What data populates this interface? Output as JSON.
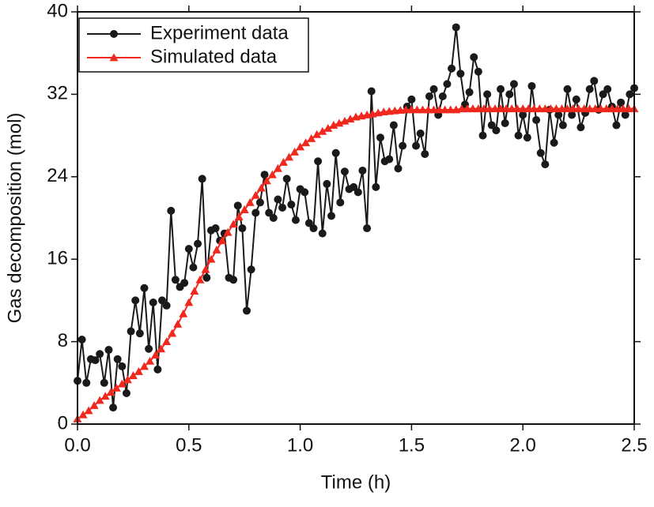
{
  "chart_data": {
    "type": "line",
    "xlabel": "Time (h)",
    "ylabel": "Gas decomposition (mol)",
    "xlim": [
      0,
      2.5
    ],
    "ylim": [
      0,
      40
    ],
    "xticks": [
      {
        "value": 0,
        "label": "0.0"
      },
      0.5,
      {
        "value": 1,
        "label": "1.0"
      },
      1.5,
      {
        "value": 2,
        "label": "2.0"
      },
      2.5
    ],
    "yticks": [
      0,
      8,
      16,
      24,
      32,
      40
    ],
    "legend": "upper left",
    "series": [
      {
        "name": "Experiment data",
        "color": "#1a1a1a",
        "marker": "circle",
        "x": [
          0,
          0.02,
          0.04,
          0.06,
          0.08,
          0.1,
          0.12,
          0.14,
          0.16,
          0.18,
          0.2,
          0.22,
          0.24,
          0.26,
          0.28,
          0.3,
          0.32,
          0.34,
          0.36,
          0.38,
          0.4,
          0.42,
          0.44,
          0.46,
          0.48,
          0.5,
          0.52,
          0.54,
          0.56,
          0.58,
          0.6,
          0.62,
          0.64,
          0.66,
          0.68,
          0.7,
          0.72,
          0.74,
          0.76,
          0.78,
          0.8,
          0.82,
          0.84,
          0.86,
          0.88,
          0.9,
          0.92,
          0.94,
          0.96,
          0.98,
          1,
          1.02,
          1.04,
          1.06,
          1.08,
          1.1,
          1.12,
          1.14,
          1.16,
          1.18,
          1.2,
          1.22,
          1.24,
          1.26,
          1.28,
          1.3,
          1.32,
          1.34,
          1.36,
          1.38,
          1.4,
          1.42,
          1.44,
          1.46,
          1.48,
          1.5,
          1.52,
          1.54,
          1.56,
          1.58,
          1.6,
          1.62,
          1.64,
          1.66,
          1.68,
          1.7,
          1.72,
          1.74,
          1.76,
          1.78,
          1.8,
          1.82,
          1.84,
          1.86,
          1.88,
          1.9,
          1.92,
          1.94,
          1.96,
          1.98,
          2,
          2.02,
          2.04,
          2.06,
          2.08,
          2.1,
          2.12,
          2.14,
          2.16,
          2.18,
          2.2,
          2.22,
          2.24,
          2.26,
          2.28,
          2.3,
          2.32,
          2.34,
          2.36,
          2.38,
          2.4,
          2.42,
          2.44,
          2.46,
          2.48,
          2.5
        ],
        "values": [
          4.2,
          8.2,
          4.0,
          6.3,
          6.2,
          6.8,
          4.0,
          7.2,
          1.6,
          6.3,
          5.6,
          3.0,
          9.0,
          12.0,
          8.8,
          13.2,
          7.3,
          11.8,
          5.3,
          12.0,
          11.5,
          20.7,
          14.0,
          13.3,
          13.7,
          17.0,
          15.2,
          17.5,
          23.8,
          14.2,
          18.8,
          19.0,
          17.8,
          18.5,
          14.2,
          14.0,
          21.2,
          19.0,
          11.0,
          15.0,
          20.5,
          21.5,
          24.2,
          20.5,
          20.0,
          21.8,
          21.0,
          23.8,
          21.3,
          19.8,
          22.8,
          22.5,
          19.5,
          19.0,
          25.5,
          18.5,
          23.3,
          20.2,
          26.3,
          21.5,
          24.5,
          22.8,
          23.0,
          22.5,
          24.6,
          19.0,
          32.3,
          23.0,
          27.8,
          25.5,
          25.7,
          29.0,
          24.8,
          27.0,
          30.8,
          31.5,
          27.0,
          28.2,
          26.2,
          31.8,
          32.5,
          30.0,
          31.8,
          33.0,
          34.5,
          38.5,
          34.0,
          31.0,
          32.2,
          35.6,
          34.2,
          28.0,
          32.0,
          29.0,
          28.5,
          32.5,
          29.2,
          32.0,
          33.0,
          28.0,
          30.0,
          27.8,
          32.8,
          29.5,
          26.3,
          25.2,
          30.5,
          27.3,
          30.0,
          29.0,
          32.5,
          30.0,
          31.5,
          28.8,
          30.2,
          32.5,
          33.3,
          30.5,
          32.0,
          32.5,
          30.8,
          29.0,
          31.2,
          30.0,
          32.0,
          32.6
        ]
      },
      {
        "name": "Simulated data",
        "color": "#f0281e",
        "marker": "triangle",
        "x": [
          0,
          0.025,
          0.05,
          0.075,
          0.1,
          0.125,
          0.15,
          0.175,
          0.2,
          0.225,
          0.25,
          0.275,
          0.3,
          0.325,
          0.35,
          0.375,
          0.4,
          0.425,
          0.45,
          0.475,
          0.5,
          0.525,
          0.55,
          0.575,
          0.6,
          0.625,
          0.65,
          0.675,
          0.7,
          0.725,
          0.75,
          0.775,
          0.8,
          0.825,
          0.85,
          0.875,
          0.9,
          0.925,
          0.95,
          0.975,
          1,
          1.025,
          1.05,
          1.075,
          1.1,
          1.125,
          1.15,
          1.175,
          1.2,
          1.225,
          1.25,
          1.275,
          1.3,
          1.325,
          1.35,
          1.375,
          1.4,
          1.425,
          1.45,
          1.475,
          1.5,
          1.525,
          1.55,
          1.575,
          1.6,
          1.625,
          1.65,
          1.675,
          1.7,
          1.725,
          1.75,
          1.775,
          1.8,
          1.825,
          1.85,
          1.875,
          1.9,
          1.925,
          1.95,
          1.975,
          2,
          2.025,
          2.05,
          2.075,
          2.1,
          2.125,
          2.15,
          2.175,
          2.2,
          2.225,
          2.25,
          2.275,
          2.3,
          2.325,
          2.35,
          2.375,
          2.4,
          2.425,
          2.45,
          2.475,
          2.5
        ],
        "values": [
          0.5,
          0.9,
          1.3,
          1.8,
          2.3,
          2.7,
          3.1,
          3.5,
          3.9,
          4.3,
          4.7,
          5.1,
          5.6,
          6.1,
          6.7,
          7.3,
          8.0,
          8.8,
          9.7,
          10.7,
          11.8,
          12.9,
          14.0,
          15.0,
          16.0,
          16.9,
          17.8,
          18.6,
          19.4,
          20.1,
          20.8,
          21.5,
          22.2,
          22.9,
          23.6,
          24.2,
          24.8,
          25.4,
          25.9,
          26.4,
          26.9,
          27.3,
          27.7,
          28.1,
          28.4,
          28.7,
          29.0,
          29.2,
          29.4,
          29.6,
          29.8,
          29.9,
          30.0,
          30.1,
          30.2,
          30.3,
          30.35,
          30.4,
          30.45,
          30.5,
          30.5,
          30.5,
          30.5,
          30.5,
          30.5,
          30.5,
          30.5,
          30.5,
          30.5,
          30.6,
          30.6,
          30.6,
          30.6,
          30.6,
          30.6,
          30.6,
          30.6,
          30.6,
          30.6,
          30.6,
          30.6,
          30.6,
          30.6,
          30.6,
          30.6,
          30.6,
          30.6,
          30.6,
          30.6,
          30.6,
          30.6,
          30.6,
          30.6,
          30.6,
          30.6,
          30.6,
          30.6,
          30.6,
          30.6,
          30.6,
          30.6
        ]
      }
    ]
  }
}
